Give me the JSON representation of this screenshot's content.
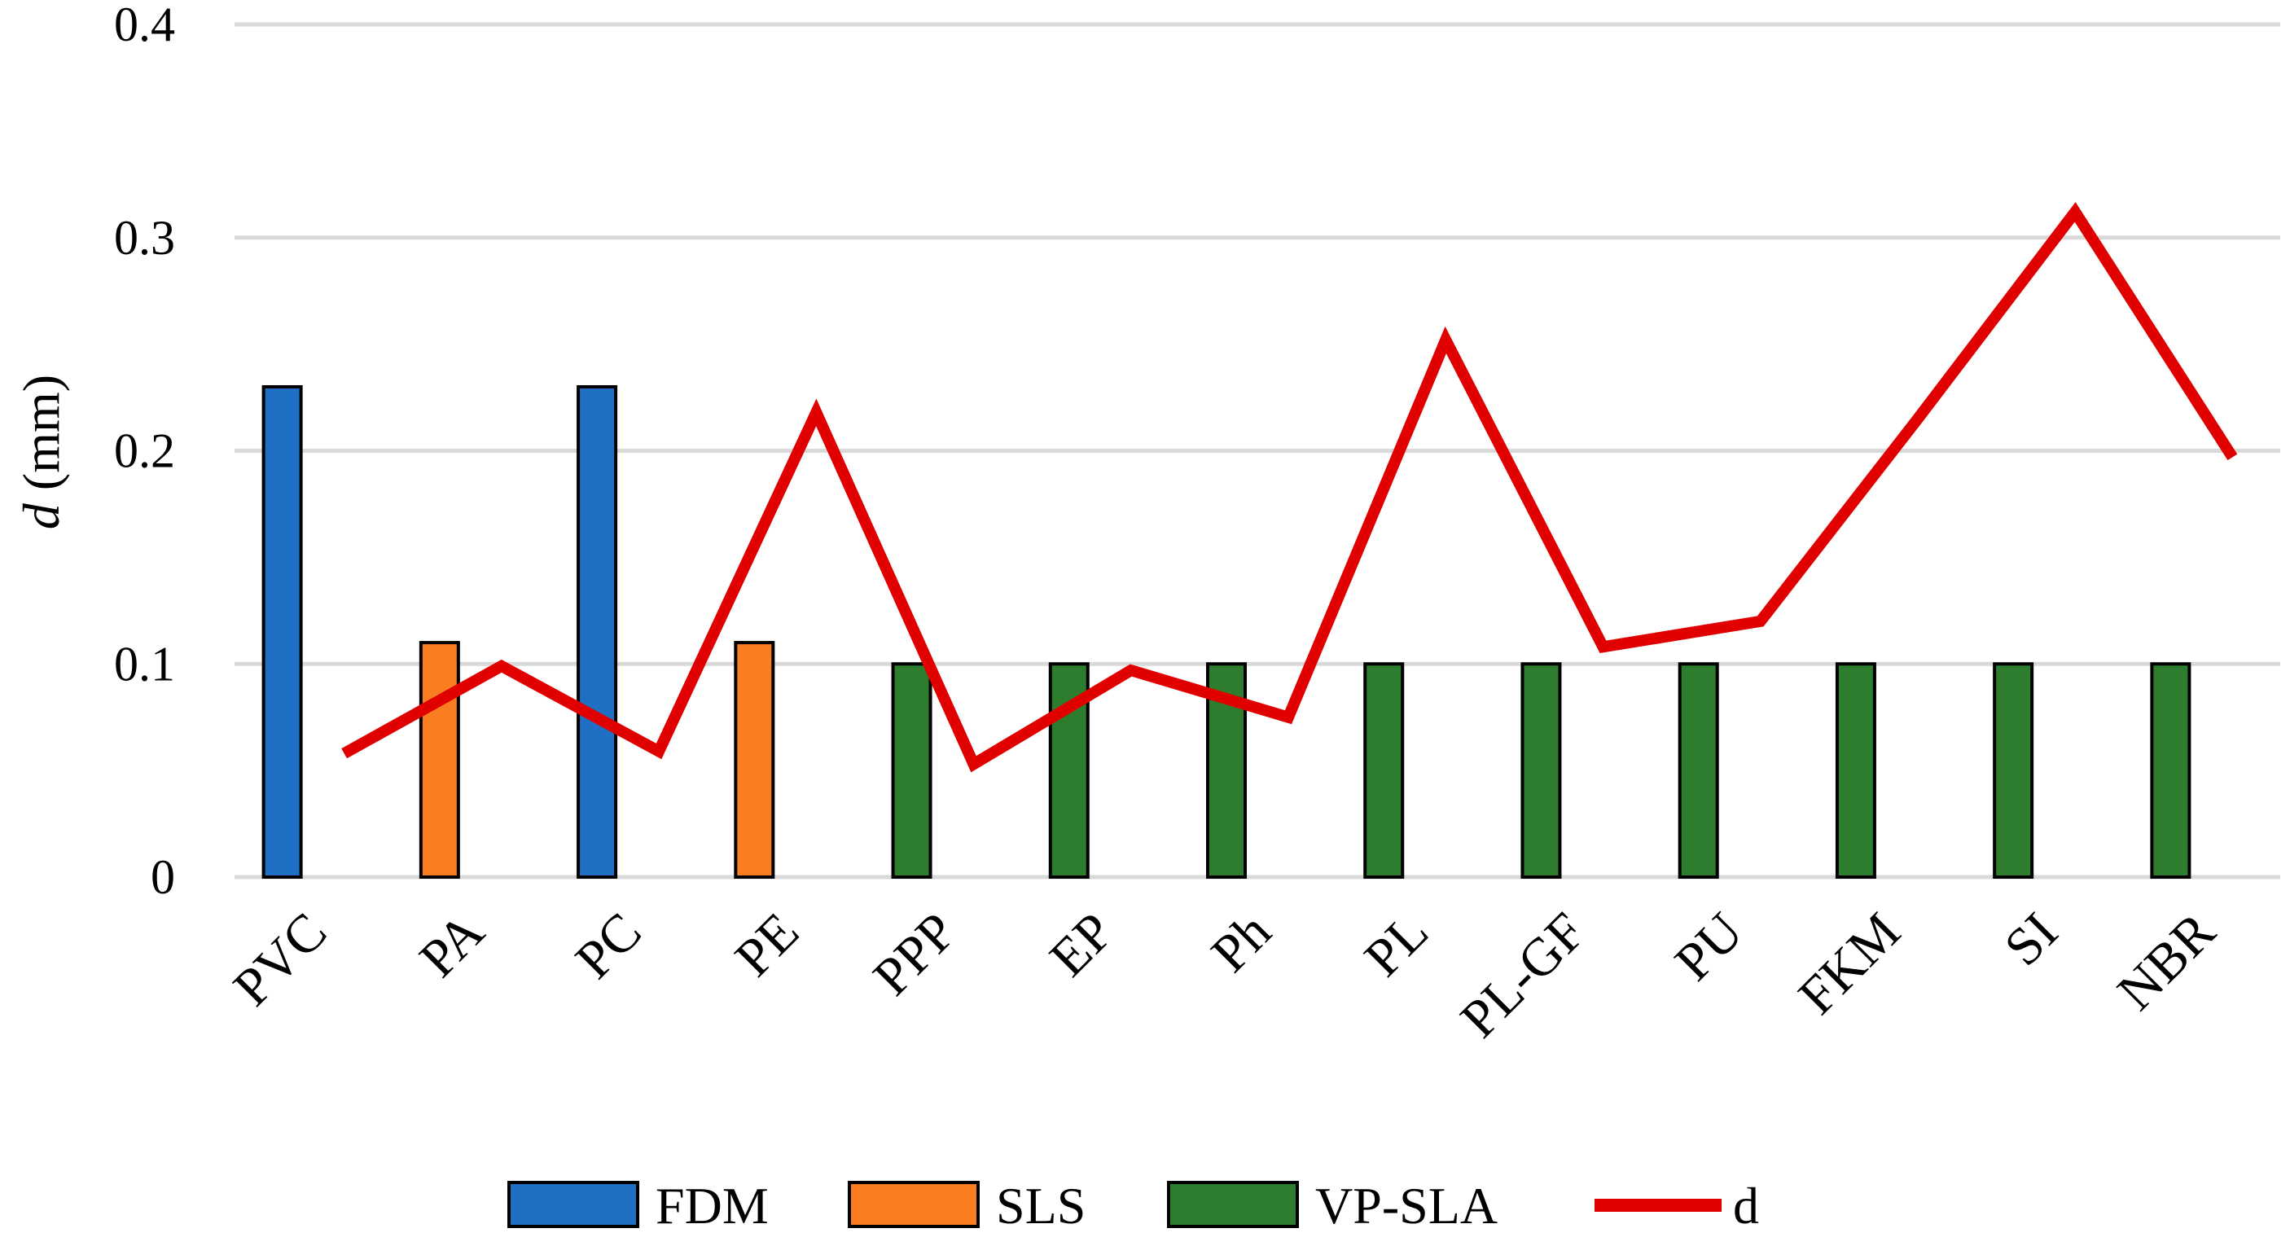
{
  "chart_data": {
    "type": "bar",
    "title": "",
    "xlabel": "",
    "ylabel": {
      "italic": "d",
      "rest": " (mm)"
    },
    "ylim": [
      0,
      0.4
    ],
    "yticks": [
      {
        "value": 0,
        "label": "0"
      },
      {
        "value": 0.1,
        "label": "0.1"
      },
      {
        "value": 0.2,
        "label": "0.2"
      },
      {
        "value": 0.3,
        "label": "0.3"
      },
      {
        "value": 0.4,
        "label": "0.4"
      }
    ],
    "grid": true,
    "categories": [
      "PVC",
      "PA",
      "PC",
      "PE",
      "PPP",
      "EP",
      "Ph",
      "PL",
      "PL-GF",
      "PU",
      "FKM",
      "SI",
      "NBR"
    ],
    "bars": [
      {
        "category": "PVC",
        "series": "FDM",
        "value": 0.23
      },
      {
        "category": "PA",
        "series": "SLS",
        "value": 0.11
      },
      {
        "category": "PC",
        "series": "FDM",
        "value": 0.23
      },
      {
        "category": "PE",
        "series": "SLS",
        "value": 0.11
      },
      {
        "category": "PPP",
        "series": "VP-SLA",
        "value": 0.1
      },
      {
        "category": "EP",
        "series": "VP-SLA",
        "value": 0.1
      },
      {
        "category": "Ph",
        "series": "VP-SLA",
        "value": 0.1
      },
      {
        "category": "PL",
        "series": "VP-SLA",
        "value": 0.1
      },
      {
        "category": "PL-GF",
        "series": "VP-SLA",
        "value": 0.1
      },
      {
        "category": "PU",
        "series": "VP-SLA",
        "value": 0.1
      },
      {
        "category": "FKM",
        "series": "VP-SLA",
        "value": 0.1
      },
      {
        "category": "SI",
        "series": "VP-SLA",
        "value": 0.1
      },
      {
        "category": "NBR",
        "series": "VP-SLA",
        "value": 0.1
      }
    ],
    "line_series": {
      "name": "d",
      "color": "#e00000",
      "values": [
        0.058,
        0.099,
        0.059,
        0.218,
        0.053,
        0.097,
        0.075,
        0.252,
        0.108,
        0.12,
        0.215,
        0.312,
        0.197
      ]
    },
    "series": [
      {
        "name": "FDM",
        "type": "bar",
        "color": "#1f6fc5"
      },
      {
        "name": "SLS",
        "type": "bar",
        "color": "#fb7d22"
      },
      {
        "name": "VP-SLA",
        "type": "bar",
        "color": "#2e7d2e"
      },
      {
        "name": "d",
        "type": "line",
        "color": "#e00000"
      }
    ],
    "legend_position": "bottom"
  }
}
